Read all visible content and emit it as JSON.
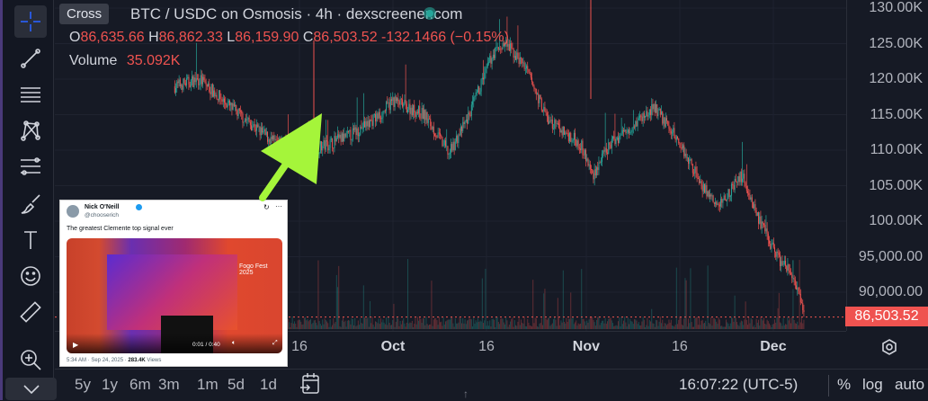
{
  "sidebar": {
    "tools": [
      {
        "name": "crosshair",
        "active": true
      },
      {
        "name": "trend-line"
      },
      {
        "name": "horizontal-lines"
      },
      {
        "name": "pitchfork"
      },
      {
        "name": "fib-retracement"
      },
      {
        "name": "brush"
      },
      {
        "name": "text"
      },
      {
        "name": "emoji"
      },
      {
        "name": "ruler"
      },
      {
        "name": "zoom-in"
      },
      {
        "name": "chevron-down"
      }
    ],
    "tooltip": "Cross"
  },
  "legend": {
    "title": "BTC / USDC on Osmosis · 4h · dexscreener.com",
    "o_label": "O",
    "o": "86,635.66",
    "h_label": "H",
    "h": "86,862.33",
    "l_label": "L",
    "l": "86,159.90",
    "c_label": "C",
    "c": "86,503.52",
    "change": "-132.1466 (−0.15%)",
    "volume_label": "Volume",
    "volume": "35.092K"
  },
  "colors": {
    "up": "#26a69a",
    "down": "#ef5350",
    "accent": "#2962ff",
    "annotation": "#a5f53a"
  },
  "chart_data": {
    "type": "candlestick",
    "interval": "4h",
    "y_ticks": [
      "130.00K",
      "125.00K",
      "120.00K",
      "115.00K",
      "110.00K",
      "105.00K",
      "100.00K",
      "95,000.00",
      "90,000.00"
    ],
    "y_tick_values": [
      130000,
      125000,
      120000,
      115000,
      110000,
      105000,
      100000,
      95000,
      90000
    ],
    "x_ticks": [
      {
        "label": "16",
        "date": "2025-09-16"
      },
      {
        "label": "Oct",
        "date": "2025-10-01",
        "major": true
      },
      {
        "label": "16",
        "date": "2025-10-16"
      },
      {
        "label": "Nov",
        "date": "2025-11-01",
        "major": true
      },
      {
        "label": "16",
        "date": "2025-11-16"
      },
      {
        "label": "Dec",
        "date": "2025-12-01",
        "major": true
      }
    ],
    "close_path": [
      [
        "2025-08-27",
        119000
      ],
      [
        "2025-08-31",
        120000
      ],
      [
        "2025-09-05",
        116000
      ],
      [
        "2025-09-12",
        111000
      ],
      [
        "2025-09-18",
        110000
      ],
      [
        "2025-09-24",
        112000
      ],
      [
        "2025-09-29",
        115000
      ],
      [
        "2025-10-01",
        117000
      ],
      [
        "2025-10-06",
        115000
      ],
      [
        "2025-10-10",
        109500
      ],
      [
        "2025-10-13",
        114500
      ],
      [
        "2025-10-17",
        123500
      ],
      [
        "2025-10-19",
        125000
      ],
      [
        "2025-10-22",
        122000
      ],
      [
        "2025-10-26",
        114000
      ],
      [
        "2025-10-31",
        111000
      ],
      [
        "2025-11-02",
        106500
      ],
      [
        "2025-11-05",
        111000
      ],
      [
        "2025-11-09",
        114000
      ],
      [
        "2025-11-12",
        116000
      ],
      [
        "2025-11-16",
        111000
      ],
      [
        "2025-11-20",
        104500
      ],
      [
        "2025-11-22",
        102000
      ],
      [
        "2025-11-26",
        106500
      ],
      [
        "2025-11-29",
        99500
      ],
      [
        "2025-12-02",
        94500
      ],
      [
        "2025-12-04",
        92500
      ],
      [
        "2025-12-06",
        86503.52
      ]
    ],
    "last_price": "86,503.52"
  },
  "time_axis_settings_icon": "gear-icon",
  "bottom": {
    "timeframes": [
      "5y",
      "1y",
      "6m",
      "3m",
      "1m",
      "5d",
      "1d"
    ],
    "clock": "16:07:22 (UTC-5)",
    "percent": "%",
    "log": "log",
    "auto": "auto"
  },
  "tweet": {
    "name": "Nick O'Neill",
    "handle": "@chooserich",
    "text": "The greatest Clemente top signal ever",
    "video_time": "0:01 / 0:40",
    "video_banner": "Fogo Fest 2025",
    "timestamp": "5:34 AM · Sep 24, 2025 ·",
    "views_count": "283.4K",
    "views_label": "Views"
  }
}
